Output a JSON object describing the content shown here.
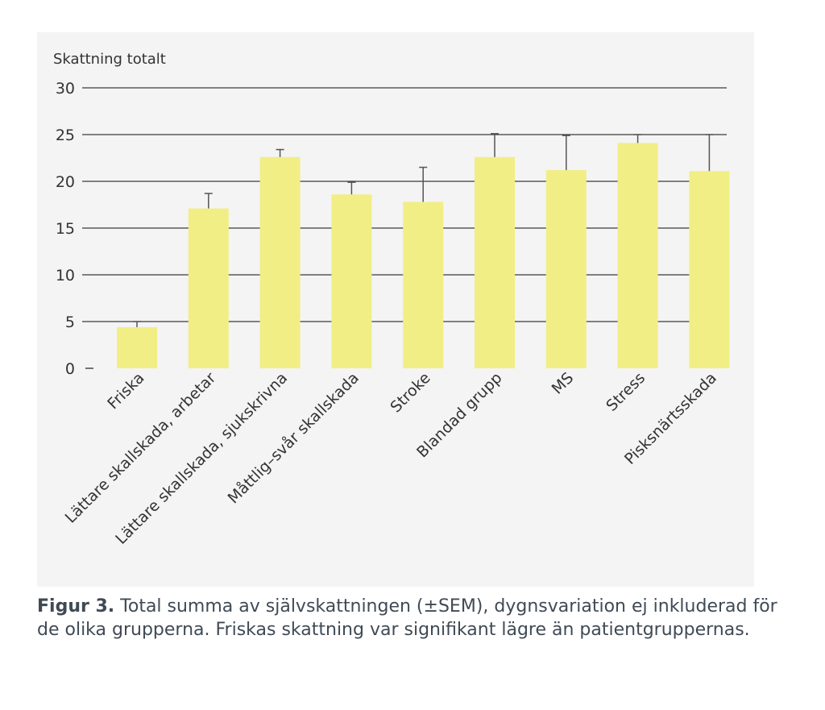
{
  "colors": {
    "bar": "#f1ee86",
    "gridline": "#3a3a3a",
    "axis_text": "#333333",
    "error_bar": "#555555",
    "caption_text": "#404a55",
    "panel_bg": "#f4f4f5"
  },
  "chart_data": {
    "type": "bar",
    "title": "",
    "ylabel": "Skattning totalt",
    "xlabel": "",
    "ylim": [
      0,
      30
    ],
    "yticks": [
      0,
      5,
      10,
      15,
      20,
      25,
      30
    ],
    "grid": true,
    "legend": "none",
    "error_type": "±SEM",
    "categories": [
      "Friska",
      "Lättare skallskada, arbetar",
      "Lättare skallskada, sjukskrivna",
      "Måttlig–svår skallskada",
      "Stroke",
      "Blandad grupp",
      "MS",
      "Stress",
      "Pisksnärtsskada"
    ],
    "values": [
      4.4,
      17.1,
      22.6,
      18.6,
      17.8,
      22.6,
      21.2,
      24.1,
      21.1
    ],
    "errors": [
      0.6,
      1.6,
      0.8,
      1.3,
      3.7,
      2.5,
      3.7,
      0.9,
      3.9
    ]
  },
  "caption": {
    "label": "Figur 3.",
    "text": "Total summa av självskattningen (±SEM), dygnsvariation ej inkluderad för de olika grupperna. Friskas skattning var signifikant lägre än patientgruppernas."
  }
}
